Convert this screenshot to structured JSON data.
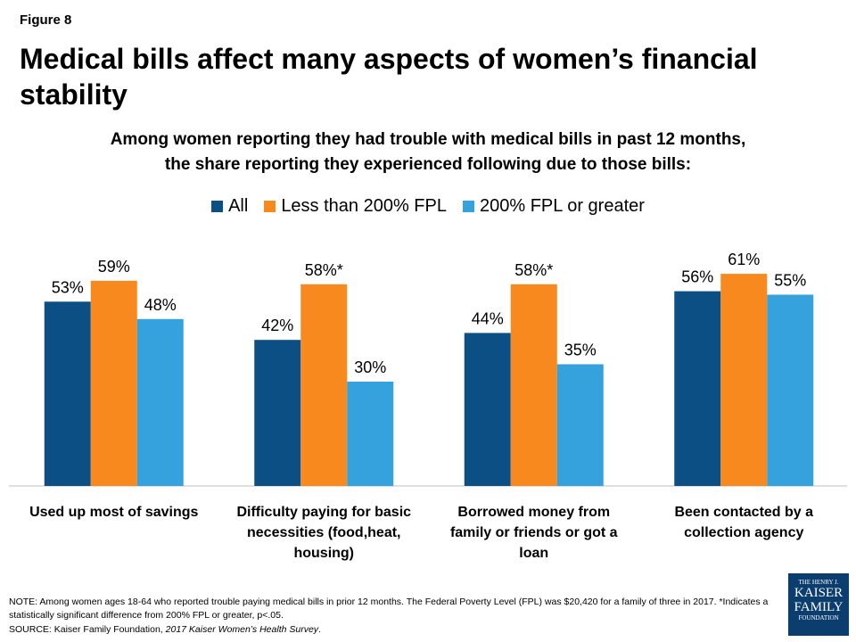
{
  "figure_label": "Figure 8",
  "chart_data": {
    "type": "bar",
    "title": "Medical bills affect many aspects of women’s financial stability",
    "subtitle": [
      "Among women reporting they had trouble with medical bills in past 12 months,",
      "the share reporting they experienced following due to those bills:"
    ],
    "categories": [
      "Used up most of savings",
      "Difficulty paying for basic necessities (food,heat, housing)",
      "Borrowed money from family or friends or got a loan",
      "Been contacted by a collection agency"
    ],
    "series": [
      {
        "name": "All",
        "color": "#0b4f85",
        "values": [
          53,
          42,
          44,
          56
        ],
        "value_labels": [
          "53%",
          "42%",
          "44%",
          "56%"
        ]
      },
      {
        "name": "Less than 200% FPL",
        "color": "#f7891f",
        "values": [
          59,
          58,
          58,
          61
        ],
        "value_labels": [
          "59%",
          "58%*",
          "58%*",
          "61%"
        ]
      },
      {
        "name": "200% FPL or greater",
        "color": "#35a1dd",
        "values": [
          48,
          30,
          35,
          55
        ],
        "value_labels": [
          "48%",
          "30%",
          "35%",
          "55%"
        ]
      }
    ]
  },
  "notes": {
    "note": "NOTE: Among women ages 18-64 who reported trouble paying medical bills in prior 12 months. The Federal Poverty Level (FPL) was $20,420 for a family of three in 2017. *Indicates a statistically significant difference from 200% FPL or greater, p<.05.",
    "source_prefix": "SOURCE: Kaiser Family Foundation,",
    "source_title": "2017 Kaiser Women’s Health Survey",
    "source_suffix": "."
  },
  "logo": {
    "line1": "THE HENRY J.",
    "line2": "KAISER",
    "line3": "FAMILY",
    "line4": "FOUNDATION"
  }
}
